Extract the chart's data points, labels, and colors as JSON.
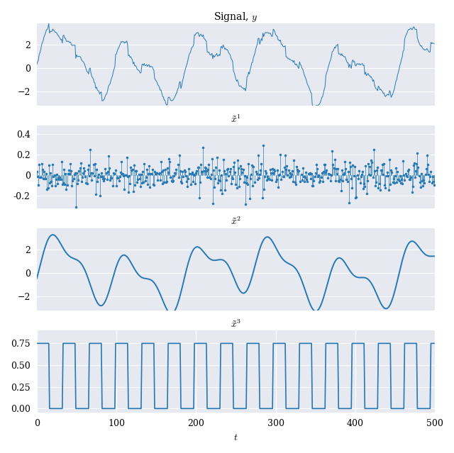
{
  "title1": "Signal, $y$",
  "title2": "$\\tilde{x}^1$",
  "title3": "$\\tilde{x}^2$",
  "title4": "$\\tilde{x}^3$",
  "xlabel": "$t$",
  "n_points": 500,
  "line_color": "#2878b4",
  "bg_color": "#e6e9f0",
  "fig_bg": "#ffffff",
  "figsize": [
    6.4,
    6.39
  ],
  "dpi": 100,
  "seed": 42,
  "square_period": 33,
  "square_duty": 0.5,
  "square_amp": 0.75
}
